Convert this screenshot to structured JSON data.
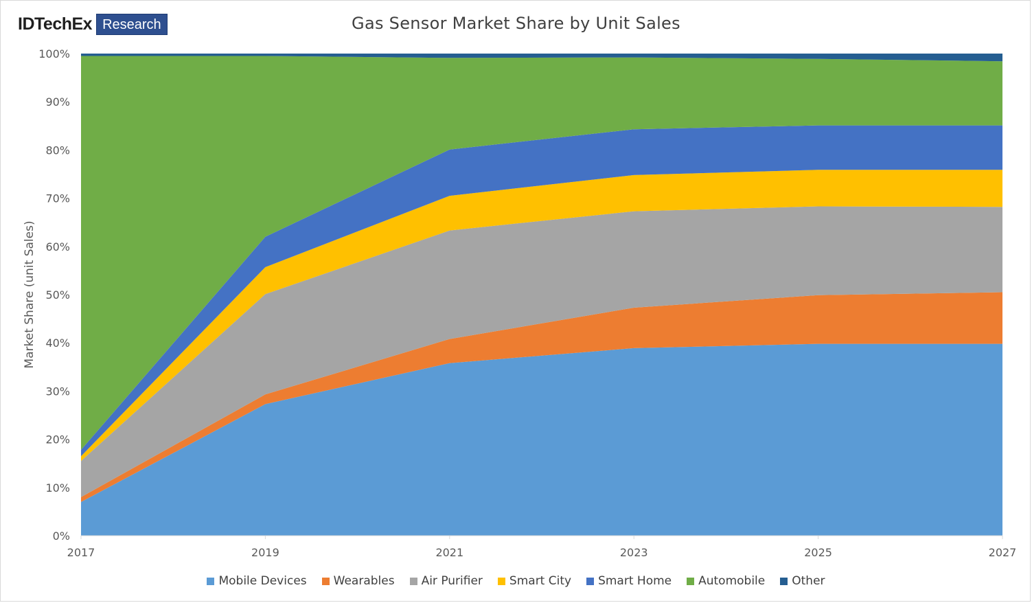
{
  "logo": {
    "brand": "IDTechEx",
    "tag": "Research"
  },
  "chart_data": {
    "type": "area",
    "stacked": true,
    "title": "Gas Sensor Market Share by Unit Sales",
    "xlabel": "",
    "ylabel": "Market Share (unit Sales)",
    "x": [
      "2017",
      "2019",
      "2021",
      "2023",
      "2025",
      "2027"
    ],
    "ylim": [
      0,
      100
    ],
    "yticks": [
      "0%",
      "10%",
      "20%",
      "30%",
      "40%",
      "50%",
      "60%",
      "70%",
      "80%",
      "90%",
      "100%"
    ],
    "grid": false,
    "legend_position": "bottom",
    "series": [
      {
        "name": "Mobile Devices",
        "color": "#5b9bd5",
        "values": [
          7.0,
          27.3,
          35.8,
          38.9,
          39.8,
          39.8
        ]
      },
      {
        "name": "Wearables",
        "color": "#ed7d31",
        "values": [
          1.0,
          2.0,
          5.0,
          8.4,
          10.1,
          10.7
        ]
      },
      {
        "name": "Air Purifier",
        "color": "#a5a5a5",
        "values": [
          7.5,
          20.8,
          22.5,
          20.0,
          18.4,
          17.7
        ]
      },
      {
        "name": "Smart City",
        "color": "#ffc000",
        "values": [
          1.0,
          5.6,
          7.2,
          7.5,
          7.6,
          7.7
        ]
      },
      {
        "name": "Smart Home",
        "color": "#4472c4",
        "values": [
          1.3,
          6.3,
          9.6,
          9.5,
          9.2,
          9.2
        ]
      },
      {
        "name": "Automobile",
        "color": "#70ad47",
        "values": [
          81.7,
          37.5,
          19.0,
          14.9,
          13.8,
          13.3
        ]
      },
      {
        "name": "Other",
        "color": "#255e91",
        "values": [
          0.5,
          0.5,
          0.9,
          0.8,
          1.1,
          1.6
        ]
      }
    ]
  }
}
